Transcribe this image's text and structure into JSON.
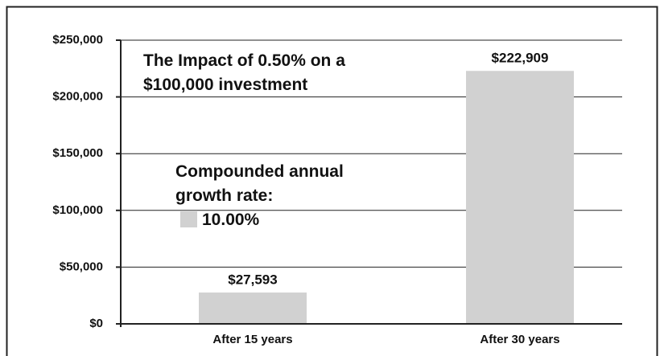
{
  "chart_data": {
    "type": "bar",
    "title": "The Impact of 0.50% on a $100,000 investment",
    "legend_title": "Compounded annual growth rate:",
    "categories": [
      "After 15 years",
      "After 30 years"
    ],
    "series": [
      {
        "name": "10.00%",
        "color": "#d1d1d1",
        "values": [
          27593,
          222909
        ],
        "value_labels": [
          "$27,593",
          "$222,909"
        ]
      }
    ],
    "ylim": [
      0,
      250000
    ],
    "yticks": [
      {
        "value": 0,
        "label": "$0"
      },
      {
        "value": 50000,
        "label": "$50,000"
      },
      {
        "value": 100000,
        "label": "$100,000"
      },
      {
        "value": 150000,
        "label": "$150,000"
      },
      {
        "value": 200000,
        "label": "$200,000"
      },
      {
        "value": 250000,
        "label": "$250,000"
      }
    ],
    "grid": true
  }
}
